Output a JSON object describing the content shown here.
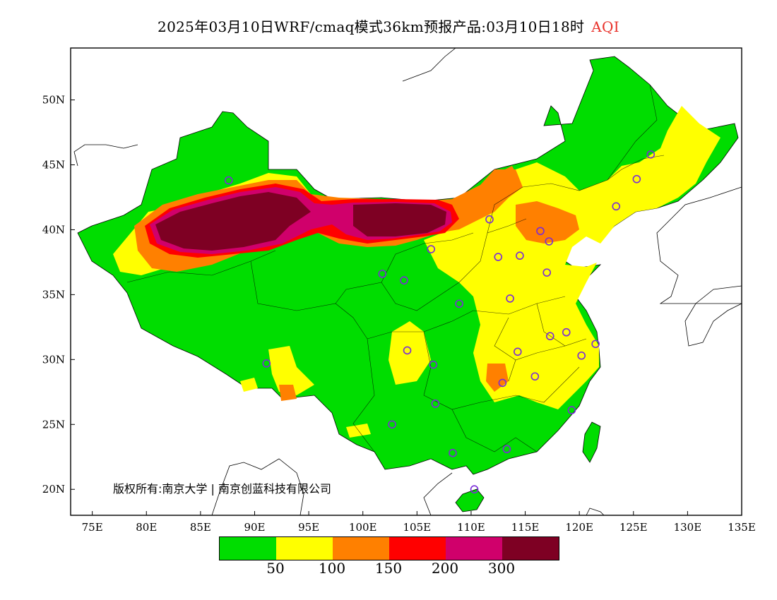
{
  "header": {
    "title": "2025年03月10日WRF/cmaq模式36km预报产品:03月10日18时",
    "variable": "AQI"
  },
  "map": {
    "lon_range": [
      73,
      135
    ],
    "lat_range": [
      18,
      54
    ],
    "lon_ticks": [
      "75E",
      "80E",
      "85E",
      "90E",
      "95E",
      "100E",
      "105E",
      "110E",
      "115E",
      "120E",
      "125E",
      "130E",
      "135E"
    ],
    "lat_ticks": [
      "20N",
      "25N",
      "30N",
      "35N",
      "40N",
      "45N",
      "50N"
    ],
    "credit": "版权所有:南京大学 | 南京创蓝科技有限公司"
  },
  "legend": {
    "colors": [
      "#00dd00",
      "#ffff00",
      "#ff8000",
      "#ff0000",
      "#d0006b",
      "#7e0023"
    ],
    "labels": [
      "50",
      "100",
      "150",
      "200",
      "300"
    ]
  },
  "stations": [
    {
      "lon": 87.6,
      "lat": 43.8
    },
    {
      "lon": 91.1,
      "lat": 29.7
    },
    {
      "lon": 101.8,
      "lat": 36.6
    },
    {
      "lon": 103.8,
      "lat": 36.1
    },
    {
      "lon": 106.3,
      "lat": 38.5
    },
    {
      "lon": 111.7,
      "lat": 40.8
    },
    {
      "lon": 116.4,
      "lat": 39.9
    },
    {
      "lon": 117.2,
      "lat": 39.1
    },
    {
      "lon": 114.5,
      "lat": 38.0
    },
    {
      "lon": 112.5,
      "lat": 37.9
    },
    {
      "lon": 117.0,
      "lat": 36.7
    },
    {
      "lon": 113.6,
      "lat": 34.7
    },
    {
      "lon": 108.9,
      "lat": 34.3
    },
    {
      "lon": 104.1,
      "lat": 30.7
    },
    {
      "lon": 106.5,
      "lat": 29.6
    },
    {
      "lon": 106.7,
      "lat": 26.6
    },
    {
      "lon": 102.7,
      "lat": 25.0
    },
    {
      "lon": 108.3,
      "lat": 22.8
    },
    {
      "lon": 113.3,
      "lat": 23.1
    },
    {
      "lon": 110.3,
      "lat": 20.0
    },
    {
      "lon": 112.9,
      "lat": 28.2
    },
    {
      "lon": 114.3,
      "lat": 30.6
    },
    {
      "lon": 115.9,
      "lat": 28.7
    },
    {
      "lon": 117.3,
      "lat": 31.8
    },
    {
      "lon": 118.8,
      "lat": 32.1
    },
    {
      "lon": 120.2,
      "lat": 30.3
    },
    {
      "lon": 121.5,
      "lat": 31.2
    },
    {
      "lon": 119.3,
      "lat": 26.1
    },
    {
      "lon": 123.4,
      "lat": 41.8
    },
    {
      "lon": 125.3,
      "lat": 43.9
    },
    {
      "lon": 126.6,
      "lat": 45.8
    }
  ]
}
